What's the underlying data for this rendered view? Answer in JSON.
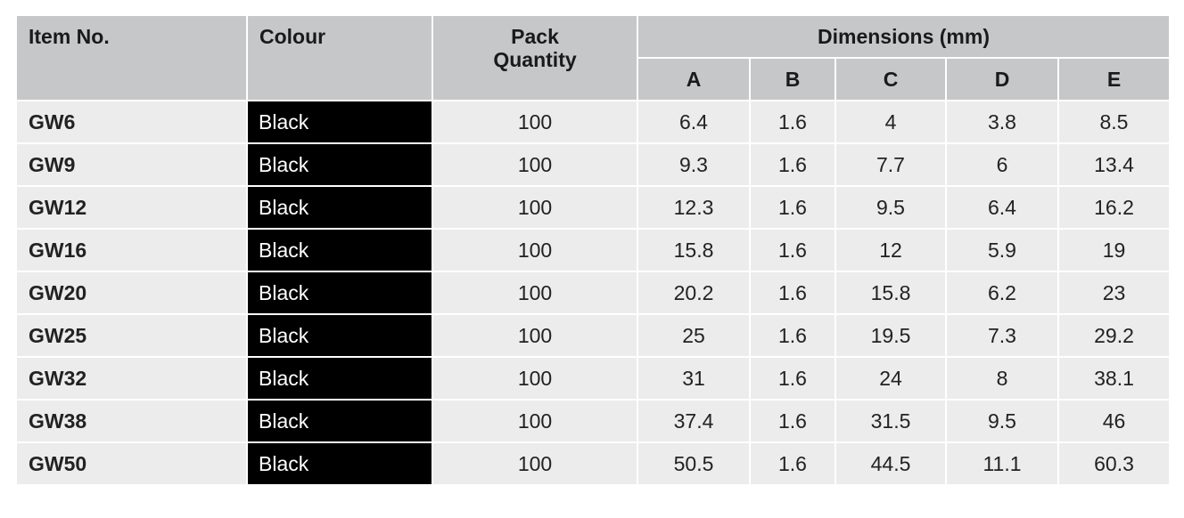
{
  "table": {
    "header": {
      "item_no": "Item No.",
      "colour": "Colour",
      "pack_quantity": "Pack Quantity",
      "dimensions": "Dimensions (mm)",
      "dims": [
        "A",
        "B",
        "C",
        "D",
        "E"
      ]
    },
    "rows": [
      [
        "GW6",
        "Black",
        100,
        6.4,
        1.6,
        4,
        3.8,
        8.5
      ],
      [
        "GW9",
        "Black",
        100,
        9.3,
        1.6,
        7.7,
        6,
        13.4
      ],
      [
        "GW12",
        "Black",
        100,
        12.3,
        1.6,
        9.5,
        6.4,
        16.2
      ],
      [
        "GW16",
        "Black",
        100,
        15.8,
        1.6,
        12,
        5.9,
        19
      ],
      [
        "GW20",
        "Black",
        100,
        20.2,
        1.6,
        15.8,
        6.2,
        23
      ],
      [
        "GW25",
        "Black",
        100,
        25,
        1.6,
        19.5,
        7.3,
        29.2
      ],
      [
        "GW32",
        "Black",
        100,
        31,
        1.6,
        24,
        8,
        38.1
      ],
      [
        "GW38",
        "Black",
        100,
        37.4,
        1.6,
        31.5,
        9.5,
        46
      ],
      [
        "GW50",
        "Black",
        100,
        50.5,
        1.6,
        44.5,
        11.1,
        60.3
      ]
    ]
  }
}
